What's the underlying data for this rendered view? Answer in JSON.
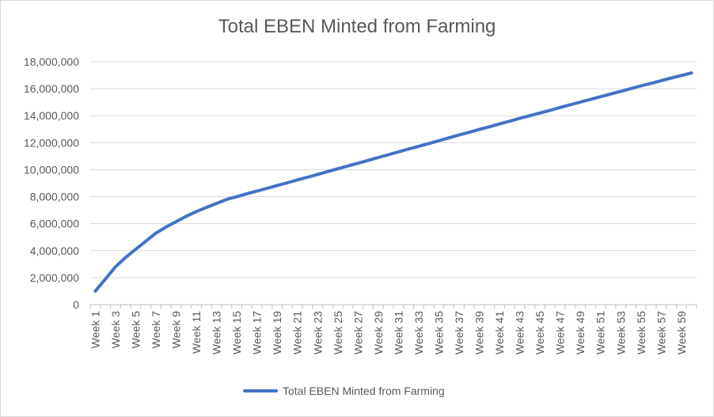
{
  "chart_data": {
    "type": "line",
    "title": "Total EBEN Minted from Farming",
    "xlabel": "",
    "ylabel": "",
    "ylim": [
      0,
      18000000
    ],
    "yticks": [
      0,
      2000000,
      4000000,
      6000000,
      8000000,
      10000000,
      12000000,
      14000000,
      16000000,
      18000000
    ],
    "ytick_labels": [
      "0",
      "2,000,000",
      "4,000,000",
      "6,000,000",
      "8,000,000",
      "10,000,000",
      "12,000,000",
      "14,000,000",
      "16,000,000",
      "18,000,000"
    ],
    "grid": true,
    "legend": "bottom",
    "categories": [
      "Week 1",
      "Week 2",
      "Week 3",
      "Week 4",
      "Week 5",
      "Week 6",
      "Week 7",
      "Week 8",
      "Week 9",
      "Week 10",
      "Week 11",
      "Week 12",
      "Week 13",
      "Week 14",
      "Week 15",
      "Week 16",
      "Week 17",
      "Week 18",
      "Week 19",
      "Week 20",
      "Week 21",
      "Week 22",
      "Week 23",
      "Week 24",
      "Week 25",
      "Week 26",
      "Week 27",
      "Week 28",
      "Week 29",
      "Week 30",
      "Week 31",
      "Week 32",
      "Week 33",
      "Week 34",
      "Week 35",
      "Week 36",
      "Week 37",
      "Week 38",
      "Week 39",
      "Week 40",
      "Week 41",
      "Week 42",
      "Week 43",
      "Week 44",
      "Week 45",
      "Week 46",
      "Week 47",
      "Week 48",
      "Week 49",
      "Week 50",
      "Week 51",
      "Week 52",
      "Week 53",
      "Week 54",
      "Week 55",
      "Week 56",
      "Week 57",
      "Week 58",
      "Week 59",
      "Week 60"
    ],
    "tick_categories": [
      "Week 1",
      "Week 3",
      "Week 5",
      "Week 7",
      "Week 9",
      "Week 11",
      "Week 13",
      "Week 15",
      "Week 17",
      "Week 19",
      "Week 21",
      "Week 23",
      "Week 25",
      "Week 27",
      "Week 29",
      "Week 31",
      "Week 33",
      "Week 35",
      "Week 37",
      "Week 39",
      "Week 41",
      "Week 43",
      "Week 45",
      "Week 47",
      "Week 49",
      "Week 51",
      "Week 53",
      "Week 55",
      "Week 57",
      "Week 59"
    ],
    "series": [
      {
        "name": "Total EBEN Minted from Farming",
        "color": "#4472c4",
        "values": [
          1000000,
          1900000,
          2800000,
          3500000,
          4100000,
          4700000,
          5300000,
          5750000,
          6150000,
          6550000,
          6900000,
          7200000,
          7500000,
          7800000,
          8000000,
          8220000,
          8420000,
          8620000,
          8830000,
          9030000,
          9240000,
          9440000,
          9650000,
          9860000,
          10070000,
          10280000,
          10480000,
          10690000,
          10900000,
          11110000,
          11320000,
          11530000,
          11730000,
          11940000,
          12150000,
          12360000,
          12570000,
          12770000,
          12980000,
          13180000,
          13390000,
          13590000,
          13800000,
          14000000,
          14200000,
          14400000,
          14610000,
          14810000,
          15010000,
          15210000,
          15410000,
          15610000,
          15810000,
          16010000,
          16210000,
          16400000,
          16600000,
          16790000,
          16980000,
          17170000
        ]
      }
    ]
  }
}
